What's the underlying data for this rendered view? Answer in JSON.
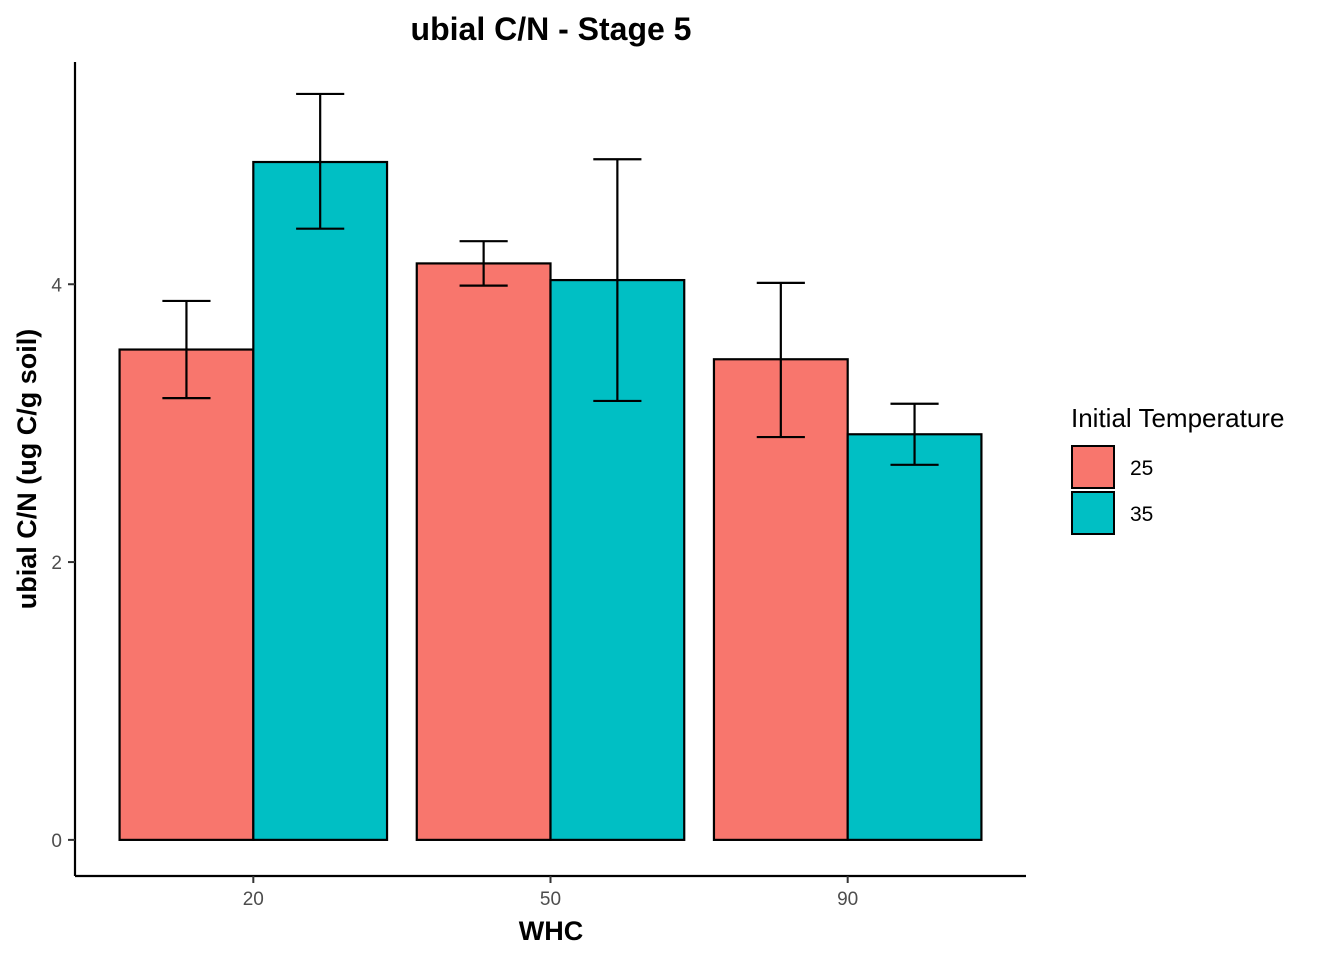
{
  "chart_data": {
    "type": "bar",
    "title": "ubial C/N - Stage 5",
    "xlabel": "WHC",
    "ylabel": "ubial C/N (ug C/g soil)",
    "categories": [
      "20",
      "50",
      "90"
    ],
    "y_ticks": [
      "0",
      "2",
      "4"
    ],
    "ylim": [
      -0.26,
      5.6
    ],
    "grid": false,
    "legend": {
      "title": "Initial Temperature",
      "placement": "right"
    },
    "series": [
      {
        "name": "25",
        "color": "#F8766D",
        "values": [
          3.53,
          4.15,
          3.46
        ],
        "error_low": [
          3.18,
          3.99,
          2.9
        ],
        "error_high": [
          3.88,
          4.31,
          4.01
        ]
      },
      {
        "name": "35",
        "color": "#00BFC4",
        "values": [
          4.88,
          4.03,
          2.92
        ],
        "error_low": [
          4.4,
          3.16,
          2.7
        ],
        "error_high": [
          5.37,
          4.9,
          3.14
        ]
      }
    ]
  }
}
